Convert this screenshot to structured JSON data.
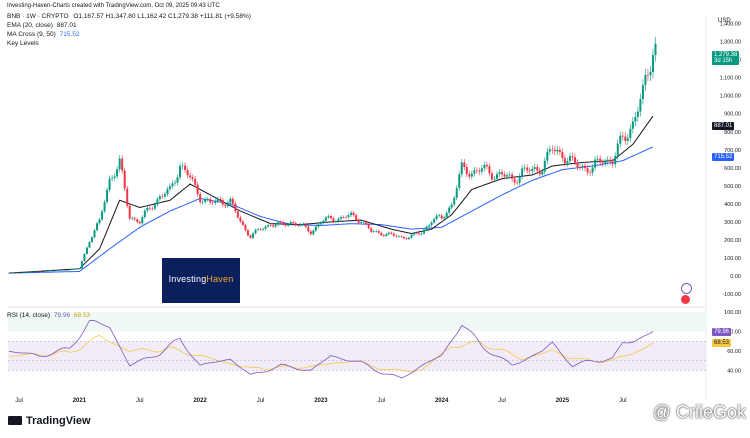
{
  "header": {
    "credit": "Investing-Haven-Charts created with TradingView.com, Oct 09, 2025 09:43 UTC"
  },
  "legend": {
    "symbol": "BNB · 1W · CRYPTO",
    "ohlc": "O1,167.57 H1,347.80 L1,162.42 C1,279.38 +111.81 (+9.58%)",
    "ema_label": "EMA (20, close)",
    "ema_value": "887.01",
    "ma_label": "MA Cross (9, 50)",
    "ma_value": "715.52",
    "key_levels": "Key Levels"
  },
  "colors": {
    "up": "#089981",
    "down": "#f23645",
    "ema": "#131722",
    "ma": "#2962ff",
    "rsi": "#7e57c2",
    "rsi_ma": "#f7c948",
    "overbought": "#089981",
    "logo_bg": "#0b1f5c",
    "logo_accent": "#f5a623"
  },
  "logo": {
    "part1": "Investing",
    "part2": "Haven"
  },
  "badges": {
    "price": "1,279.38",
    "countdown": "3d 15h",
    "ema": "887.01",
    "ma": "715.52",
    "rsi": "79.96",
    "rsi_ma": "68.53"
  },
  "rsi_legend": {
    "label": "RSI (14, close)",
    "rsi": "79.96",
    "ma": "68.53"
  },
  "footer": {
    "brand": "TradingView"
  },
  "watermark": "@ CriieGok",
  "chart_data": {
    "type": "candlestick",
    "currency": "USD",
    "y_axis_ticks": [
      "1,400.00",
      "1,300.00",
      "1,200.00",
      "1,100.00",
      "1,000.00",
      "900.00",
      "800.00",
      "700.00",
      "600.00",
      "500.00",
      "400.00",
      "300.00",
      "200.00",
      "100.00",
      "0.00",
      "-100.00"
    ],
    "ylim": [
      -100,
      1420
    ],
    "rsi_ticks": [
      "100.00",
      "80.00",
      "60.00",
      "40.00"
    ],
    "rsi_ylim": [
      20,
      100
    ],
    "x_ticks": [
      "Jul",
      "2021",
      "Jul",
      "2022",
      "Jul",
      "2023",
      "Jul",
      "2024",
      "Jul",
      "2025",
      "Jul"
    ],
    "x_tick_dates": [
      "2020-07",
      "2021-01",
      "2021-07",
      "2022-01",
      "2022-07",
      "2023-01",
      "2023-07",
      "2024-01",
      "2024-07",
      "2025-01",
      "2025-07"
    ],
    "price_anchors": [
      [
        "2020-06",
        16
      ],
      [
        "2020-10",
        28
      ],
      [
        "2020-12",
        35
      ],
      [
        "2021-01",
        42
      ],
      [
        "2021-02",
        200
      ],
      [
        "2021-03",
        300
      ],
      [
        "2021-04",
        540
      ],
      [
        "2021-05",
        620
      ],
      [
        "2021-06",
        330
      ],
      [
        "2021-07",
        300
      ],
      [
        "2021-08",
        380
      ],
      [
        "2021-09",
        440
      ],
      [
        "2021-10",
        470
      ],
      [
        "2021-11",
        620
      ],
      [
        "2021-12",
        540
      ],
      [
        "2022-01",
        440
      ],
      [
        "2022-02",
        400
      ],
      [
        "2022-03",
        420
      ],
      [
        "2022-04",
        410
      ],
      [
        "2022-05",
        300
      ],
      [
        "2022-06",
        220
      ],
      [
        "2022-07",
        260
      ],
      [
        "2022-08",
        290
      ],
      [
        "2022-09",
        280
      ],
      [
        "2022-10",
        300
      ],
      [
        "2022-11",
        280
      ],
      [
        "2022-12",
        245
      ],
      [
        "2023-01",
        300
      ],
      [
        "2023-02",
        320
      ],
      [
        "2023-03",
        320
      ],
      [
        "2023-04",
        335
      ],
      [
        "2023-05",
        310
      ],
      [
        "2023-06",
        245
      ],
      [
        "2023-07",
        240
      ],
      [
        "2023-08",
        225
      ],
      [
        "2023-09",
        215
      ],
      [
        "2023-10",
        220
      ],
      [
        "2023-11",
        240
      ],
      [
        "2023-12",
        310
      ],
      [
        "2024-01",
        320
      ],
      [
        "2024-02",
        400
      ],
      [
        "2024-03",
        590
      ],
      [
        "2024-04",
        580
      ],
      [
        "2024-05",
        590
      ],
      [
        "2024-06",
        570
      ],
      [
        "2024-07",
        560
      ],
      [
        "2024-08",
        530
      ],
      [
        "2024-09",
        580
      ],
      [
        "2024-10",
        580
      ],
      [
        "2024-11",
        610
      ],
      [
        "2024-12",
        700
      ],
      [
        "2025-01",
        680
      ],
      [
        "2025-02",
        620
      ],
      [
        "2025-03",
        610
      ],
      [
        "2025-04",
        590
      ],
      [
        "2025-05",
        650
      ],
      [
        "2025-06",
        640
      ],
      [
        "2025-07",
        760
      ],
      [
        "2025-08",
        850
      ],
      [
        "2025-09",
        1000
      ],
      [
        "2025-10",
        1279
      ]
    ],
    "ema_anchors": [
      [
        "2020-06",
        16
      ],
      [
        "2021-01",
        40
      ],
      [
        "2021-03",
        150
      ],
      [
        "2021-05",
        420
      ],
      [
        "2021-07",
        380
      ],
      [
        "2021-10",
        420
      ],
      [
        "2021-12",
        510
      ],
      [
        "2022-02",
        450
      ],
      [
        "2022-05",
        360
      ],
      [
        "2022-08",
        290
      ],
      [
        "2022-11",
        285
      ],
      [
        "2023-02",
        300
      ],
      [
        "2023-05",
        310
      ],
      [
        "2023-08",
        260
      ],
      [
        "2023-10",
        235
      ],
      [
        "2023-12",
        260
      ],
      [
        "2024-02",
        340
      ],
      [
        "2024-04",
        480
      ],
      [
        "2024-07",
        540
      ],
      [
        "2024-10",
        560
      ],
      [
        "2024-12",
        610
      ],
      [
        "2025-03",
        630
      ],
      [
        "2025-06",
        640
      ],
      [
        "2025-08",
        730
      ],
      [
        "2025-10",
        887
      ]
    ],
    "ma_anchors": [
      [
        "2020-06",
        16
      ],
      [
        "2021-01",
        25
      ],
      [
        "2021-04",
        150
      ],
      [
        "2021-07",
        270
      ],
      [
        "2021-10",
        360
      ],
      [
        "2022-01",
        430
      ],
      [
        "2022-04",
        400
      ],
      [
        "2022-07",
        330
      ],
      [
        "2022-10",
        285
      ],
      [
        "2023-01",
        280
      ],
      [
        "2023-04",
        290
      ],
      [
        "2023-07",
        285
      ],
      [
        "2023-10",
        260
      ],
      [
        "2024-01",
        270
      ],
      [
        "2024-04",
        360
      ],
      [
        "2024-07",
        450
      ],
      [
        "2024-10",
        530
      ],
      [
        "2025-01",
        590
      ],
      [
        "2025-04",
        610
      ],
      [
        "2025-07",
        640
      ],
      [
        "2025-10",
        716
      ]
    ],
    "rsi_anchors": [
      [
        "2020-06",
        60
      ],
      [
        "2020-09",
        55
      ],
      [
        "2020-12",
        62
      ],
      [
        "2021-02",
        90
      ],
      [
        "2021-04",
        85
      ],
      [
        "2021-06",
        45
      ],
      [
        "2021-09",
        58
      ],
      [
        "2021-11",
        72
      ],
      [
        "2022-01",
        45
      ],
      [
        "2022-04",
        52
      ],
      [
        "2022-06",
        35
      ],
      [
        "2022-09",
        45
      ],
      [
        "2022-12",
        40
      ],
      [
        "2023-02",
        55
      ],
      [
        "2023-05",
        48
      ],
      [
        "2023-07",
        38
      ],
      [
        "2023-09",
        32
      ],
      [
        "2023-11",
        45
      ],
      [
        "2024-01",
        55
      ],
      [
        "2024-03",
        88
      ],
      [
        "2024-05",
        65
      ],
      [
        "2024-08",
        45
      ],
      [
        "2024-11",
        60
      ],
      [
        "2024-12",
        68
      ],
      [
        "2025-02",
        45
      ],
      [
        "2025-04",
        50
      ],
      [
        "2025-06",
        52
      ],
      [
        "2025-07",
        68
      ],
      [
        "2025-08",
        70
      ],
      [
        "2025-10",
        80
      ]
    ],
    "rsi_ma_anchors": [
      [
        "2020-06",
        55
      ],
      [
        "2020-12",
        58
      ],
      [
        "2021-03",
        75
      ],
      [
        "2021-06",
        60
      ],
      [
        "2021-10",
        62
      ],
      [
        "2022-01",
        55
      ],
      [
        "2022-06",
        42
      ],
      [
        "2022-12",
        44
      ],
      [
        "2023-04",
        50
      ],
      [
        "2023-08",
        40
      ],
      [
        "2023-11",
        40
      ],
      [
        "2024-02",
        65
      ],
      [
        "2024-05",
        68
      ],
      [
        "2024-09",
        52
      ],
      [
        "2024-12",
        60
      ],
      [
        "2025-03",
        50
      ],
      [
        "2025-06",
        50
      ],
      [
        "2025-09",
        62
      ],
      [
        "2025-10",
        68.5
      ]
    ],
    "overbought_zone": [
      80,
      100
    ],
    "rsi_band": [
      40,
      70
    ]
  }
}
